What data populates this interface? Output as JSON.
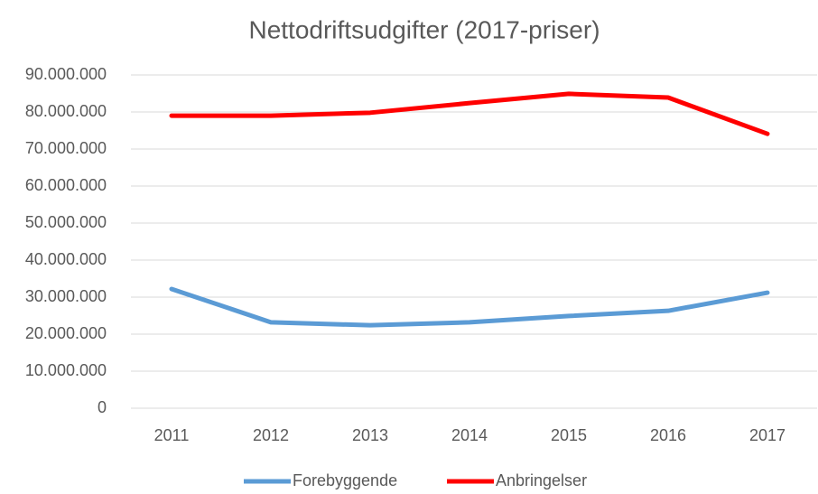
{
  "chart_data": {
    "type": "line",
    "title": "Nettodriftsudgifter (2017-priser)",
    "categories": [
      "2011",
      "2012",
      "2013",
      "2014",
      "2015",
      "2016",
      "2017"
    ],
    "series": [
      {
        "name": "Forebyggende",
        "color": "#5b9bd5",
        "values": [
          32200000,
          23200000,
          22400000,
          23200000,
          24900000,
          26300000,
          31200000
        ]
      },
      {
        "name": "Anbringelser",
        "color": "#ff0000",
        "values": [
          79000000,
          79000000,
          79800000,
          82400000,
          84900000,
          83900000,
          74100000
        ]
      }
    ],
    "ylim": [
      0,
      90000000
    ],
    "yticks": [
      0,
      {
        "value": 10000000,
        "label": "10.000.000"
      },
      {
        "value": 20000000,
        "label": "20.000.000"
      },
      {
        "value": 30000000,
        "label": "30.000.000"
      },
      {
        "value": 40000000,
        "label": "40.000.000"
      },
      {
        "value": 50000000,
        "label": "50.000.000"
      },
      {
        "value": 60000000,
        "label": "60.000.000"
      },
      {
        "value": 70000000,
        "label": "70.000.000"
      },
      {
        "value": 80000000,
        "label": "80.000.000"
      },
      {
        "value": 90000000,
        "label": "90.000.000"
      }
    ],
    "grid": true,
    "legend": "bottom"
  }
}
